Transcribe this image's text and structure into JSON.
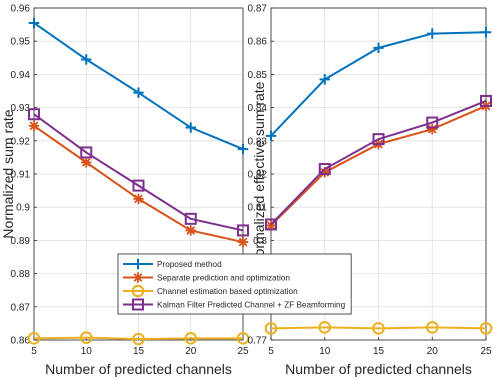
{
  "chart_data": [
    {
      "type": "line",
      "title": "",
      "xlabel": "Number of predicted channels",
      "ylabel": "Normalized sum rate",
      "x": [
        5,
        10,
        15,
        20,
        25
      ],
      "xlim": [
        5,
        25
      ],
      "ylim": [
        0.86,
        0.96
      ],
      "xticks": [
        "5",
        "10",
        "15",
        "20",
        "25"
      ],
      "yticks": [
        "0.86",
        "0.87",
        "0.88",
        "0.89",
        "0.9",
        "0.91",
        "0.92",
        "0.93",
        "0.94",
        "0.95",
        "0.96"
      ],
      "grid": true,
      "series": [
        {
          "name": "Proposed method",
          "values": [
            0.9555,
            0.9445,
            0.9345,
            0.924,
            0.9175
          ]
        },
        {
          "name": "Separate prediction and optimization",
          "values": [
            0.9245,
            0.9135,
            0.9025,
            0.893,
            0.8895
          ]
        },
        {
          "name": "Channel estimation based optimization",
          "values": [
            0.8605,
            0.8607,
            0.8603,
            0.8605,
            0.8605
          ]
        },
        {
          "name": "Kalman Filter Predicted Channel + ZF Beamforming",
          "values": [
            0.928,
            0.9165,
            0.9065,
            0.8965,
            0.893
          ]
        }
      ]
    },
    {
      "type": "line",
      "title": "",
      "xlabel": "Number of predicted channels",
      "ylabel": "Normalized effective sum rate",
      "x": [
        5,
        10,
        15,
        20,
        25
      ],
      "xlim": [
        5,
        25
      ],
      "ylim": [
        0.77,
        0.87
      ],
      "xticks": [
        "5",
        "10",
        "15",
        "20",
        "25"
      ],
      "yticks": [
        "0.77",
        "0.78",
        "0.79",
        "0.8",
        "0.81",
        "0.82",
        "0.83",
        "0.84",
        "0.85",
        "0.86",
        "0.87"
      ],
      "grid": true,
      "series": [
        {
          "name": "Proposed method",
          "values": [
            0.8315,
            0.8485,
            0.858,
            0.8623,
            0.8627
          ]
        },
        {
          "name": "Separate prediction and optimization",
          "values": [
            0.8045,
            0.8205,
            0.829,
            0.8335,
            0.8405
          ]
        },
        {
          "name": "Channel estimation based optimization",
          "values": [
            0.7735,
            0.7738,
            0.7735,
            0.7738,
            0.7735
          ]
        },
        {
          "name": "Kalman Filter Predicted Channel + ZF Beamforming",
          "values": [
            0.8048,
            0.8215,
            0.8305,
            0.8355,
            0.842
          ]
        }
      ]
    }
  ],
  "legend": {
    "placement": "lower-left, spanning both panels",
    "entries": [
      "Proposed method",
      "Separate prediction and optimization",
      "Channel estimation based optimization",
      "Kalman Filter Predicted Channel + ZF Beamforming"
    ]
  },
  "colors": {
    "proposed": "#0072BD",
    "separate": "#D95319",
    "channel_estimation": "#EDB120",
    "kalman": "#7E2F8E",
    "grid": "#DFDFDF",
    "axis": "#262626"
  },
  "markers": [
    "plus",
    "asterisk",
    "circle",
    "square"
  ]
}
